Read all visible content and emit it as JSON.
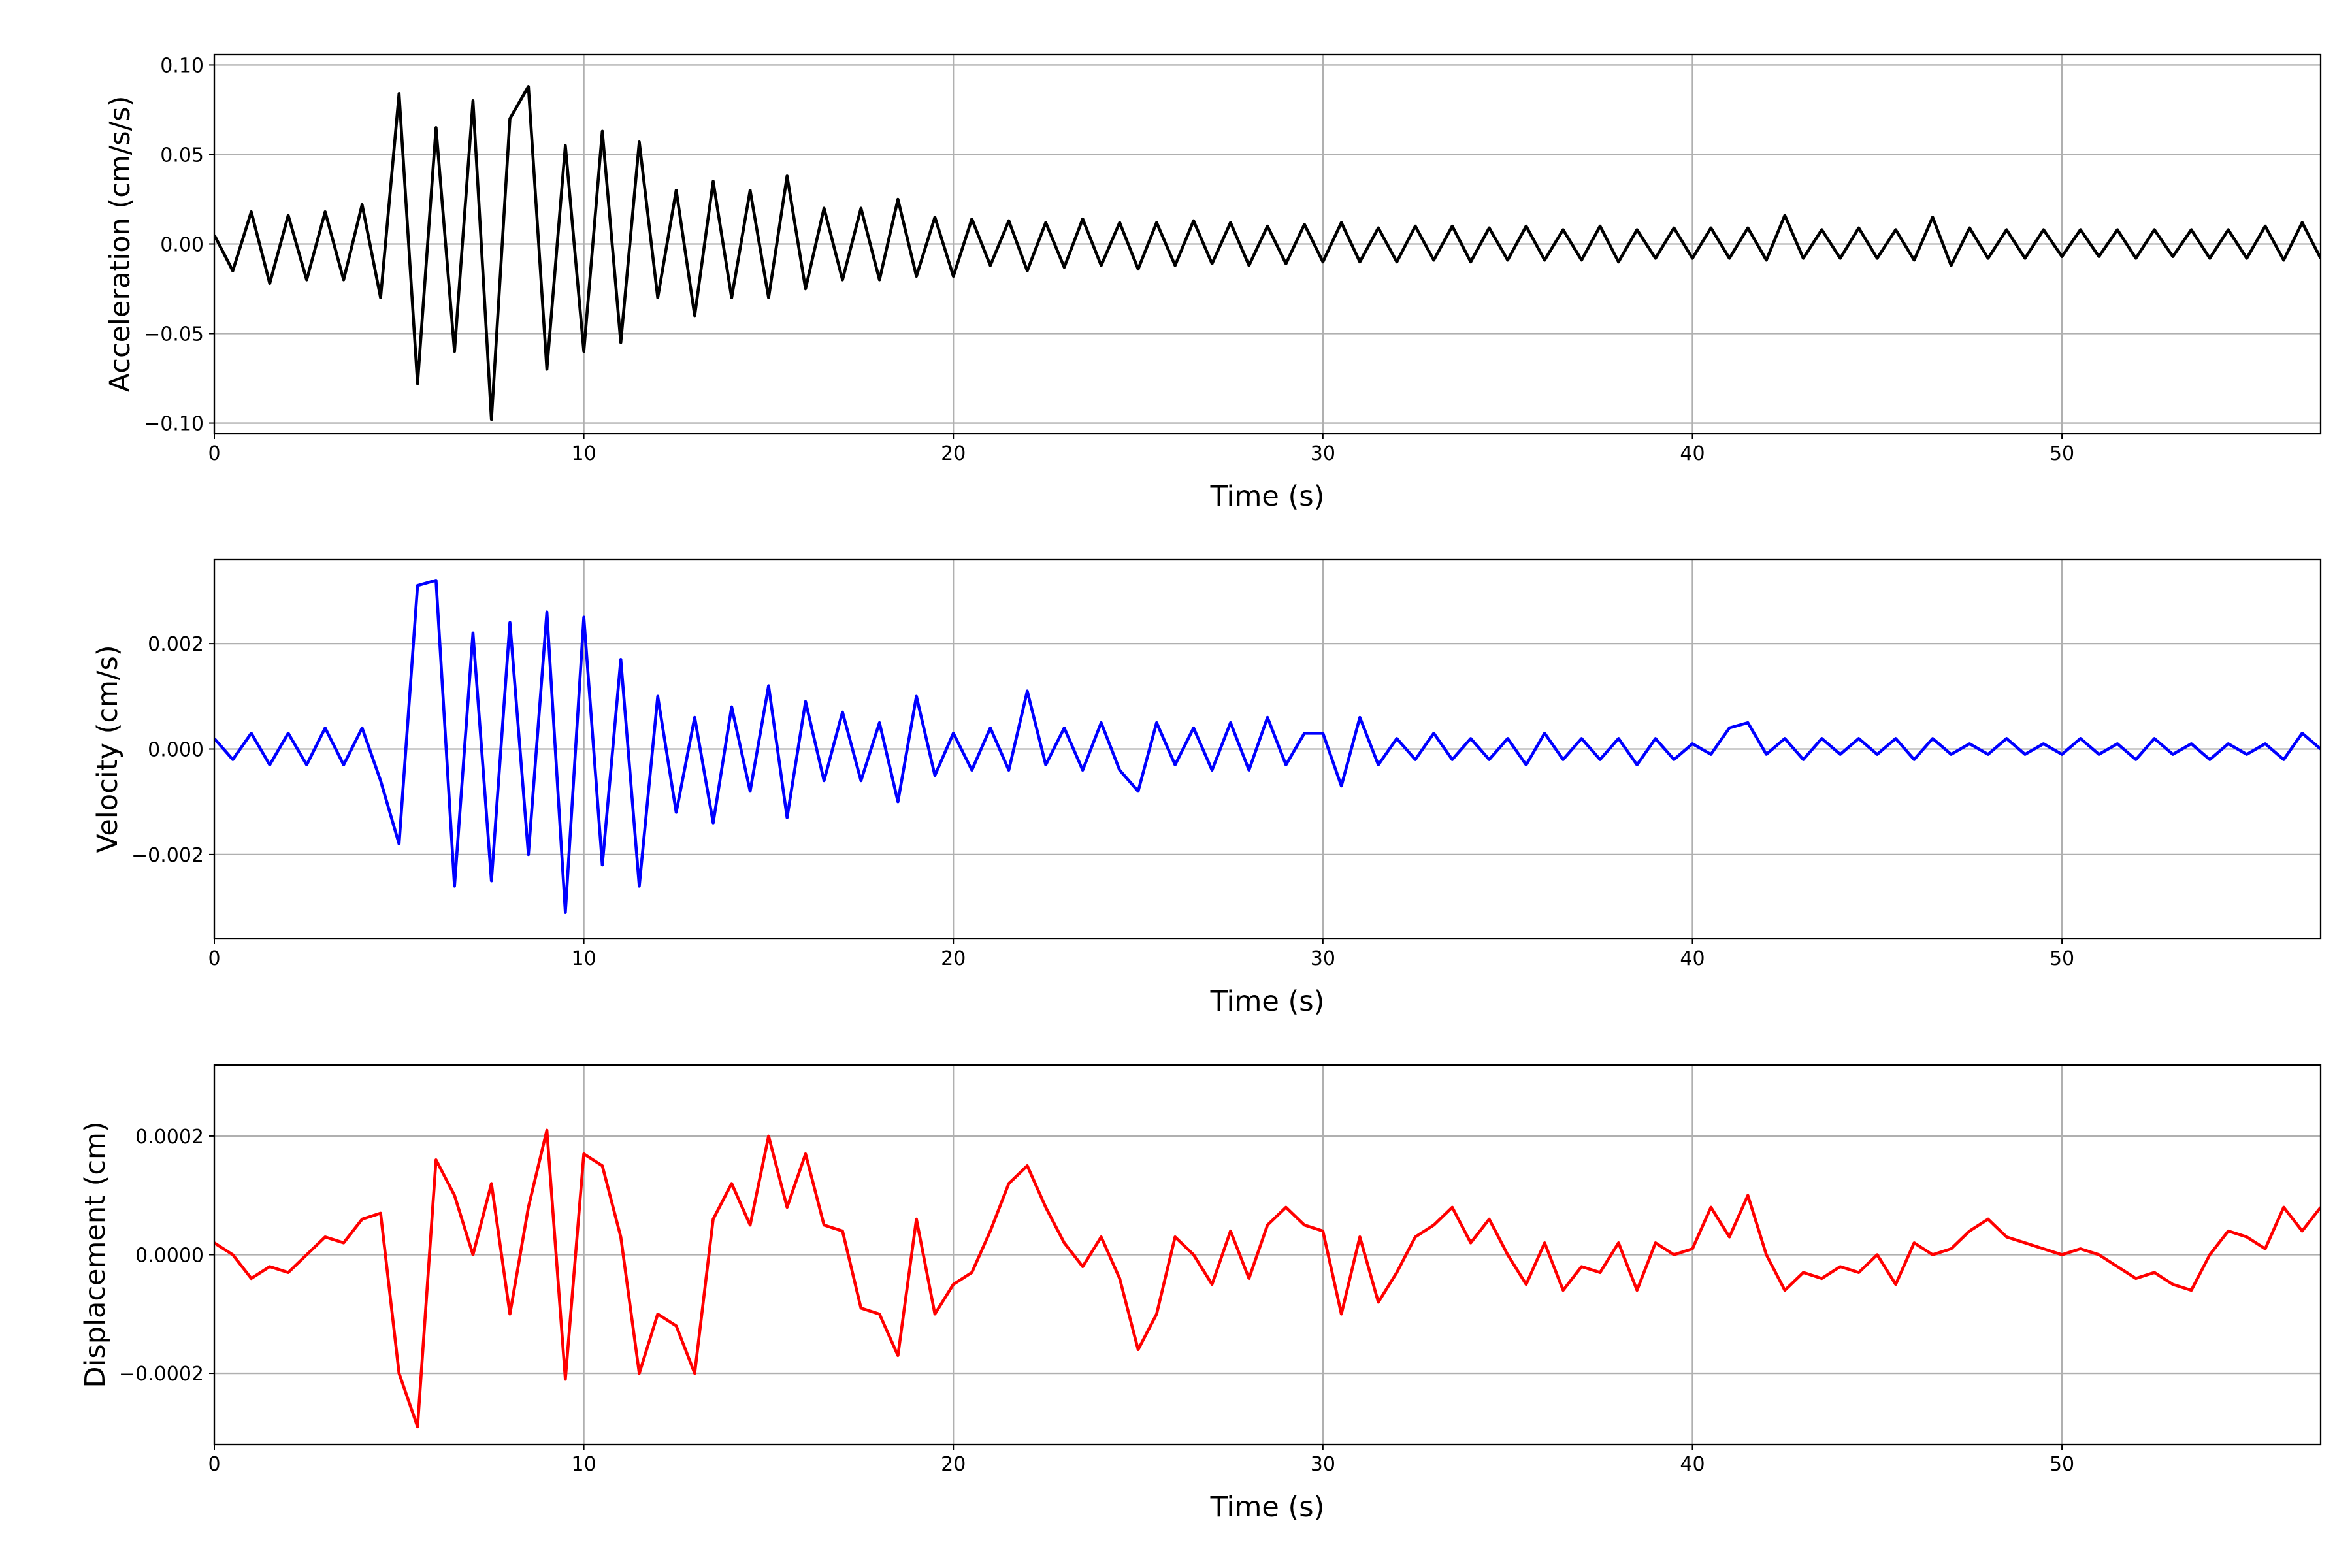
{
  "chart_data": [
    {
      "type": "line",
      "xlabel": "Time (s)",
      "ylabel": "Acceleration (cm/s/s)",
      "xlim": [
        0,
        57
      ],
      "xticks": [
        0,
        10,
        20,
        30,
        40,
        50
      ],
      "ylim": [
        -0.106,
        0.106
      ],
      "yticks": [
        {
          "value": -0.1,
          "label": "−0.10"
        },
        {
          "value": -0.05,
          "label": "−0.05"
        },
        {
          "value": 0,
          "label": "0.00"
        },
        0.05,
        {
          "value": 0.1,
          "label": "0.10"
        }
      ],
      "grid": true,
      "x": [
        0,
        0.5,
        1,
        1.5,
        2,
        2.5,
        3,
        3.5,
        4,
        4.5,
        5,
        5.5,
        6,
        6.5,
        7,
        7.5,
        8,
        8.5,
        9,
        9.5,
        10,
        10.5,
        11,
        11.5,
        12,
        12.5,
        13,
        13.5,
        14,
        14.5,
        15,
        15.5,
        16,
        16.5,
        17,
        17.5,
        18,
        18.5,
        19,
        19.5,
        20,
        20.5,
        21,
        21.5,
        22,
        22.5,
        23,
        23.5,
        24,
        24.5,
        25,
        25.5,
        26,
        26.5,
        27,
        27.5,
        28,
        28.5,
        29,
        29.5,
        30,
        30.5,
        31,
        31.5,
        32,
        32.5,
        33,
        33.5,
        34,
        34.5,
        35,
        35.5,
        36,
        36.5,
        37,
        37.5,
        38,
        38.5,
        39,
        39.5,
        40,
        40.5,
        41,
        41.5,
        42,
        42.5,
        43,
        43.5,
        44,
        44.5,
        45,
        45.5,
        46,
        46.5,
        47,
        47.5,
        48,
        48.5,
        49,
        49.5,
        50,
        50.5,
        51,
        51.5,
        52,
        52.5,
        53,
        53.5,
        54,
        54.5,
        55,
        55.5,
        56,
        56.5,
        57
      ],
      "series": [
        {
          "color": "#000000",
          "values": [
            0.005,
            -0.015,
            0.018,
            -0.022,
            0.016,
            -0.02,
            0.018,
            -0.02,
            0.022,
            -0.03,
            0.084,
            -0.078,
            0.065,
            -0.06,
            0.08,
            -0.098,
            0.07,
            0.088,
            -0.07,
            0.055,
            -0.06,
            0.063,
            -0.055,
            0.057,
            -0.03,
            0.03,
            -0.04,
            0.035,
            -0.03,
            0.03,
            -0.03,
            0.038,
            -0.025,
            0.02,
            -0.02,
            0.02,
            -0.02,
            0.025,
            -0.018,
            0.015,
            -0.018,
            0.014,
            -0.012,
            0.013,
            -0.015,
            0.012,
            -0.013,
            0.014,
            -0.012,
            0.012,
            -0.014,
            0.012,
            -0.012,
            0.013,
            -0.011,
            0.012,
            -0.012,
            0.01,
            -0.011,
            0.011,
            -0.01,
            0.012,
            -0.01,
            0.009,
            -0.01,
            0.01,
            -0.009,
            0.01,
            -0.01,
            0.009,
            -0.009,
            0.01,
            -0.009,
            0.008,
            -0.009,
            0.01,
            -0.01,
            0.008,
            -0.008,
            0.009,
            -0.008,
            0.009,
            -0.008,
            0.009,
            -0.009,
            0.016,
            -0.008,
            0.008,
            -0.008,
            0.009,
            -0.008,
            0.008,
            -0.009,
            0.015,
            -0.012,
            0.009,
            -0.008,
            0.008,
            -0.008,
            0.008,
            -0.007,
            0.008,
            -0.007,
            0.008,
            -0.008,
            0.008,
            -0.007,
            0.008,
            -0.008,
            0.008,
            -0.008,
            0.01,
            -0.009,
            0.012,
            -0.008
          ]
        }
      ]
    },
    {
      "type": "line",
      "xlabel": "Time (s)",
      "ylabel": "Velocity (cm/s)",
      "xlim": [
        0,
        57
      ],
      "xticks": [
        0,
        10,
        20,
        30,
        40,
        50
      ],
      "ylim": [
        -0.0036,
        0.0036
      ],
      "yticks": [
        {
          "value": -0.002,
          "label": "−0.002"
        },
        {
          "value": 0,
          "label": "0.000"
        },
        0.002
      ],
      "grid": true,
      "x": [
        0,
        0.5,
        1,
        1.5,
        2,
        2.5,
        3,
        3.5,
        4,
        4.5,
        5,
        5.5,
        6,
        6.5,
        7,
        7.5,
        8,
        8.5,
        9,
        9.5,
        10,
        10.5,
        11,
        11.5,
        12,
        12.5,
        13,
        13.5,
        14,
        14.5,
        15,
        15.5,
        16,
        16.5,
        17,
        17.5,
        18,
        18.5,
        19,
        19.5,
        20,
        20.5,
        21,
        21.5,
        22,
        22.5,
        23,
        23.5,
        24,
        24.5,
        25,
        25.5,
        26,
        26.5,
        27,
        27.5,
        28,
        28.5,
        29,
        29.5,
        30,
        30.5,
        31,
        31.5,
        32,
        32.5,
        33,
        33.5,
        34,
        34.5,
        35,
        35.5,
        36,
        36.5,
        37,
        37.5,
        38,
        38.5,
        39,
        39.5,
        40,
        40.5,
        41,
        41.5,
        42,
        42.5,
        43,
        43.5,
        44,
        44.5,
        45,
        45.5,
        46,
        46.5,
        47,
        47.5,
        48,
        48.5,
        49,
        49.5,
        50,
        50.5,
        51,
        51.5,
        52,
        52.5,
        53,
        53.5,
        54,
        54.5,
        55,
        55.5,
        56,
        56.5,
        57
      ],
      "series": [
        {
          "color": "#0000ff",
          "values": [
            0.0002,
            -0.0002,
            0.0003,
            -0.0003,
            0.0003,
            -0.0003,
            0.0004,
            -0.0003,
            0.0004,
            -0.0006,
            -0.0018,
            0.0031,
            0.0032,
            -0.0026,
            0.0022,
            -0.0025,
            0.0024,
            -0.002,
            0.0026,
            -0.0031,
            0.0025,
            -0.0022,
            0.0017,
            -0.0026,
            0.001,
            -0.0012,
            0.0006,
            -0.0014,
            0.0008,
            -0.0008,
            0.0012,
            -0.0013,
            0.0009,
            -0.0006,
            0.0007,
            -0.0006,
            0.0005,
            -0.001,
            0.001,
            -0.0005,
            0.0003,
            -0.0004,
            0.0004,
            -0.0004,
            0.0011,
            -0.0003,
            0.0004,
            -0.0004,
            0.0005,
            -0.0004,
            -0.0008,
            0.0005,
            -0.0003,
            0.0004,
            -0.0004,
            0.0005,
            -0.0004,
            0.0006,
            -0.0003,
            0.0003,
            0.0003,
            -0.0007,
            0.0006,
            -0.0003,
            0.0002,
            -0.0002,
            0.0003,
            -0.0002,
            0.0002,
            -0.0002,
            0.0002,
            -0.0003,
            0.0003,
            -0.0002,
            0.0002,
            -0.0002,
            0.0002,
            -0.0003,
            0.0002,
            -0.0002,
            0.0001,
            -0.0001,
            0.0004,
            0.0005,
            -0.0001,
            0.0002,
            -0.0002,
            0.0002,
            -0.0001,
            0.0002,
            -0.0001,
            0.0002,
            -0.0002,
            0.0002,
            -0.0001,
            0.0001,
            -0.0001,
            0.0002,
            -0.0001,
            0.0001,
            -0.0001,
            0.0002,
            -0.0001,
            0.0001,
            -0.0002,
            0.0002,
            -0.0001,
            0.0001,
            -0.0002,
            0.0001,
            -0.0001,
            0.0001,
            -0.0002,
            0.0003,
            0
          ]
        }
      ]
    },
    {
      "type": "line",
      "xlabel": "Time (s)",
      "ylabel": "Displacement (cm)",
      "xlim": [
        0,
        57
      ],
      "xticks": [
        0,
        10,
        20,
        30,
        40,
        50
      ],
      "ylim": [
        -0.00032,
        0.00032
      ],
      "yticks": [
        {
          "value": -0.0002,
          "label": "−0.0002"
        },
        {
          "value": 0,
          "label": "0.0000"
        },
        0.0002
      ],
      "grid": true,
      "x": [
        0,
        0.5,
        1,
        1.5,
        2,
        2.5,
        3,
        3.5,
        4,
        4.5,
        5,
        5.5,
        6,
        6.5,
        7,
        7.5,
        8,
        8.5,
        9,
        9.5,
        10,
        10.5,
        11,
        11.5,
        12,
        12.5,
        13,
        13.5,
        14,
        14.5,
        15,
        15.5,
        16,
        16.5,
        17,
        17.5,
        18,
        18.5,
        19,
        19.5,
        20,
        20.5,
        21,
        21.5,
        22,
        22.5,
        23,
        23.5,
        24,
        24.5,
        25,
        25.5,
        26,
        26.5,
        27,
        27.5,
        28,
        28.5,
        29,
        29.5,
        30,
        30.5,
        31,
        31.5,
        32,
        32.5,
        33,
        33.5,
        34,
        34.5,
        35,
        35.5,
        36,
        36.5,
        37,
        37.5,
        38,
        38.5,
        39,
        39.5,
        40,
        40.5,
        41,
        41.5,
        42,
        42.5,
        43,
        43.5,
        44,
        44.5,
        45,
        45.5,
        46,
        46.5,
        47,
        47.5,
        48,
        48.5,
        49,
        49.5,
        50,
        50.5,
        51,
        51.5,
        52,
        52.5,
        53,
        53.5,
        54,
        54.5,
        55,
        55.5,
        56,
        56.5,
        57
      ],
      "series": [
        {
          "color": "#ff0000",
          "values": [
            2e-05,
            0,
            -4e-05,
            -2e-05,
            -3e-05,
            0,
            3e-05,
            2e-05,
            6e-05,
            7e-05,
            -0.0002,
            -0.00029,
            0.00016,
            0.0001,
            0,
            0.00012,
            -0.0001,
            8e-05,
            0.00021,
            -0.00021,
            0.00017,
            0.00015,
            3e-05,
            -0.0002,
            -0.0001,
            -0.00012,
            -0.0002,
            6e-05,
            0.00012,
            5e-05,
            0.0002,
            8e-05,
            0.00017,
            5e-05,
            4e-05,
            -9e-05,
            -0.0001,
            -0.00017,
            6e-05,
            -0.0001,
            -5e-05,
            -3e-05,
            4e-05,
            0.00012,
            0.00015,
            8e-05,
            2e-05,
            -2e-05,
            3e-05,
            -4e-05,
            -0.00016,
            -0.0001,
            3e-05,
            0,
            -5e-05,
            4e-05,
            -4e-05,
            5e-05,
            8e-05,
            5e-05,
            4e-05,
            -0.0001,
            3e-05,
            -8e-05,
            -3e-05,
            3e-05,
            5e-05,
            8e-05,
            2e-05,
            6e-05,
            0,
            -5e-05,
            2e-05,
            -6e-05,
            -2e-05,
            -3e-05,
            2e-05,
            -6e-05,
            2e-05,
            0,
            1e-05,
            8e-05,
            3e-05,
            0.0001,
            0,
            -6e-05,
            -3e-05,
            -4e-05,
            -2e-05,
            -3e-05,
            0,
            -5e-05,
            2e-05,
            0,
            1e-05,
            4e-05,
            6e-05,
            3e-05,
            2e-05,
            1e-05,
            0,
            1e-05,
            0,
            -2e-05,
            -4e-05,
            -3e-05,
            -5e-05,
            -6e-05,
            0,
            4e-05,
            3e-05,
            1e-05,
            8e-05,
            4e-05,
            8e-05
          ]
        }
      ]
    }
  ]
}
